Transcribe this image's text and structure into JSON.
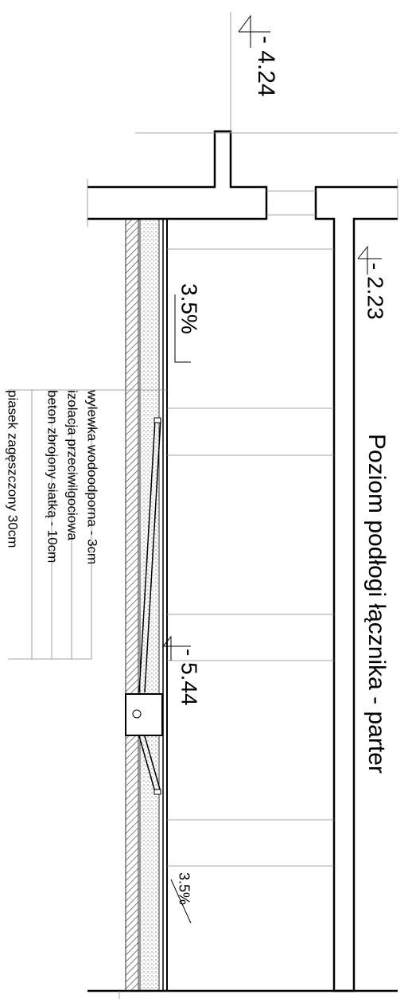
{
  "levels": {
    "top": "- 4.24",
    "right": "- 2.23",
    "drain": "- 5.44"
  },
  "slopes": [
    "3.5%",
    "3.5%"
  ],
  "title": "Poziom podłogi łącznika - parter",
  "layers": [
    "wylewka wodoodporna - 3cm",
    "izolacja przeciwilgociowa",
    "beton zbrojony siatką - 10cm",
    "piasek zagęszczony 30cm"
  ]
}
